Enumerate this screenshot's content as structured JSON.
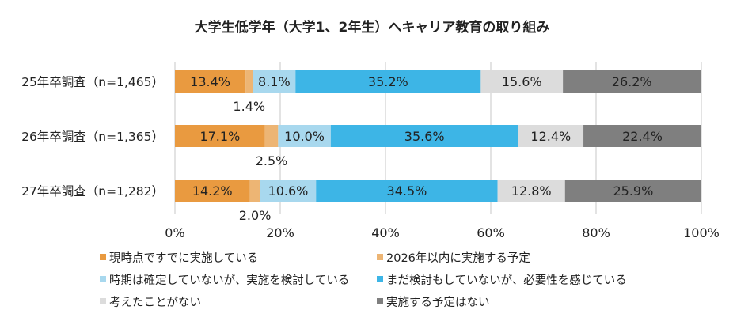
{
  "chart_data": {
    "type": "bar",
    "orientation": "horizontal",
    "stacked": true,
    "title": "大学生低学年（大学1、2年生）へキャリア教育の取り組み",
    "categories": [
      "25年卒調査（n=1,465）",
      "26年卒調査（n=1,365）",
      "27年卒調査（n=1,282）"
    ],
    "series": [
      {
        "name": "現時点ですでに実施している",
        "color": "#E99A40",
        "values": [
          13.4,
          17.1,
          14.2
        ]
      },
      {
        "name": "2026年以内に実施する予定",
        "color": "#EDB574",
        "values": [
          1.4,
          2.5,
          2.0
        ]
      },
      {
        "name": "時期は確定していないが、実施を検討している",
        "color": "#A8D8EE",
        "values": [
          8.1,
          10.0,
          10.6
        ]
      },
      {
        "name": "まだ検討もしていないが、必要性を感じている",
        "color": "#3DB5E6",
        "values": [
          35.2,
          35.6,
          34.5
        ]
      },
      {
        "name": "考えたことがない",
        "color": "#DCDCDC",
        "values": [
          15.6,
          12.4,
          12.8
        ]
      },
      {
        "name": "実施する予定はない",
        "color": "#7F7F7F",
        "values": [
          26.2,
          22.4,
          25.9
        ]
      }
    ],
    "xlim": [
      0,
      100
    ],
    "xticks": [
      "0%",
      "20%",
      "40%",
      "60%",
      "80%",
      "100%"
    ],
    "grid": true,
    "legend_position": "bottom"
  }
}
